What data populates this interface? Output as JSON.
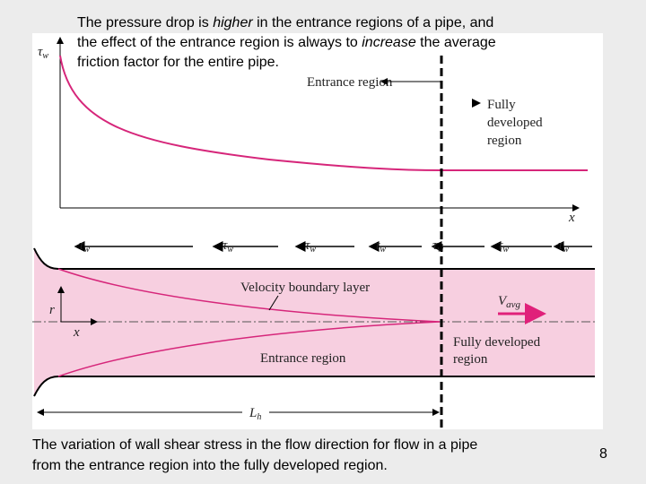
{
  "header": {
    "parts": [
      "The pressure drop is ",
      "higher",
      " in the entrance regions of a pipe, and",
      "the effect of the entrance region is always to ",
      "increase",
      " the average",
      "friction factor for the entire pipe."
    ]
  },
  "figure": {
    "plot": {
      "y_label": "τ",
      "y_label_sub": "w",
      "x_label": "x",
      "entrance_label": "Entrance region",
      "developed_label": [
        "Fully",
        "developed",
        "region"
      ]
    },
    "pipe": {
      "shear_labels": [
        {
          "symbol": "τ",
          "sub": "w"
        },
        {
          "symbol": "τ",
          "sub": "w"
        },
        {
          "symbol": "τ",
          "sub": "w"
        },
        {
          "symbol": "τ",
          "sub": "w"
        },
        {
          "symbol": "τ",
          "sub": "w"
        },
        {
          "symbol": "τ",
          "sub": "w"
        },
        {
          "symbol": "τ",
          "sub": "w"
        }
      ],
      "boundary_layer_label": "Velocity boundary layer",
      "velocity_label": "V",
      "velocity_sub": "avg",
      "r_label": "r",
      "x_label": "x",
      "entrance_label": "Entrance region",
      "developed_label": [
        "Fully developed",
        "region"
      ],
      "length_label": "L",
      "length_sub": "h"
    }
  },
  "caption": [
    "The variation of wall shear stress in the flow direction for flow in a pipe",
    "from the entrance region into the fully developed region."
  ],
  "page_number": "8"
}
